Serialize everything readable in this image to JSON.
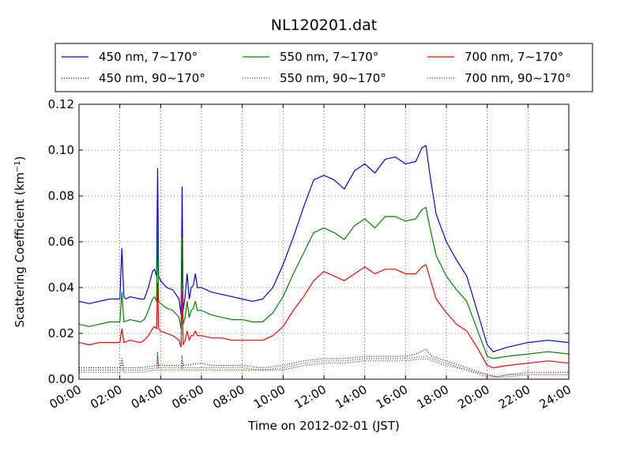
{
  "chart_data": {
    "type": "line",
    "title": "NL120201.dat",
    "xlabel": "Time on 2012-02-01 (JST)",
    "ylabel": "Scattering Coefficient (km",
    "ylabel_exp": "−1",
    "ylabel_close": ")",
    "xlim": [
      0,
      24
    ],
    "ylim": [
      0,
      0.12
    ],
    "x_ticks": [
      0,
      2,
      4,
      6,
      8,
      10,
      12,
      14,
      16,
      18,
      20,
      22,
      24
    ],
    "x_tick_labels": [
      "00:00",
      "02:00",
      "04:00",
      "06:00",
      "08:00",
      "10:00",
      "12:00",
      "14:00",
      "16:00",
      "18:00",
      "20:00",
      "22:00",
      "24:00"
    ],
    "y_ticks": [
      0,
      0.02,
      0.04,
      0.06,
      0.08,
      0.1,
      0.12
    ],
    "y_tick_labels": [
      "0.00",
      "0.02",
      "0.04",
      "0.06",
      "0.08",
      "0.10",
      "0.12"
    ],
    "grid": true,
    "legend_position": "top",
    "series": [
      {
        "name": "450 nm, 7∼170°",
        "color": "#0000ff",
        "style": "solid",
        "x": [
          0,
          0.5,
          1,
          1.5,
          2,
          2.1,
          2.2,
          2.3,
          2.5,
          3,
          3.2,
          3.4,
          3.6,
          3.7,
          3.8,
          3.85,
          3.9,
          3.95,
          4,
          4.3,
          4.6,
          4.9,
          5.0,
          5.05,
          5.1,
          5.2,
          5.3,
          5.4,
          5.5,
          5.6,
          5.7,
          5.8,
          6,
          6.5,
          7,
          7.5,
          8,
          8.5,
          9,
          9.5,
          10,
          10.5,
          11,
          11.5,
          12,
          12.5,
          13,
          13.5,
          14,
          14.5,
          15,
          15.5,
          16,
          16.5,
          16.8,
          17,
          17.2,
          17.5,
          18,
          18.5,
          19,
          19.5,
          20,
          20.3,
          21,
          22,
          23,
          24
        ],
        "y": [
          0.034,
          0.033,
          0.034,
          0.035,
          0.035,
          0.057,
          0.036,
          0.035,
          0.036,
          0.035,
          0.035,
          0.04,
          0.047,
          0.048,
          0.045,
          0.092,
          0.045,
          0.044,
          0.043,
          0.04,
          0.039,
          0.035,
          0.028,
          0.084,
          0.03,
          0.036,
          0.046,
          0.035,
          0.04,
          0.041,
          0.046,
          0.04,
          0.04,
          0.038,
          0.037,
          0.036,
          0.035,
          0.034,
          0.035,
          0.04,
          0.05,
          0.062,
          0.075,
          0.087,
          0.089,
          0.087,
          0.083,
          0.091,
          0.094,
          0.09,
          0.096,
          0.097,
          0.094,
          0.095,
          0.101,
          0.102,
          0.089,
          0.072,
          0.06,
          0.052,
          0.045,
          0.03,
          0.015,
          0.012,
          0.014,
          0.016,
          0.017,
          0.016
        ]
      },
      {
        "name": "450 nm, 90∼170°",
        "color": "#0000ff",
        "style": "dotted",
        "x": [
          0,
          1,
          2,
          2.1,
          2.2,
          3,
          3.8,
          3.85,
          3.9,
          4.5,
          5,
          5.05,
          5.1,
          6,
          6.5,
          7,
          8,
          9,
          10,
          11,
          12,
          13,
          14,
          15,
          16,
          16.5,
          17,
          17.3,
          18,
          19,
          20,
          20.5,
          21,
          22,
          23,
          24
        ],
        "y": [
          0.005,
          0.005,
          0.005,
          0.009,
          0.005,
          0.005,
          0.006,
          0.012,
          0.006,
          0.006,
          0.006,
          0.01,
          0.006,
          0.007,
          0.006,
          0.006,
          0.006,
          0.005,
          0.006,
          0.008,
          0.009,
          0.009,
          0.01,
          0.01,
          0.01,
          0.011,
          0.013,
          0.01,
          0.008,
          0.005,
          0.002,
          0.001,
          0.002,
          0.003,
          0.003,
          0.003
        ]
      },
      {
        "name": "550 nm, 7∼170°",
        "color": "#008000",
        "style": "solid",
        "x": [
          0,
          0.5,
          1,
          1.5,
          2,
          2.1,
          2.2,
          2.5,
          3,
          3.2,
          3.4,
          3.6,
          3.7,
          3.8,
          3.85,
          3.9,
          4,
          4.3,
          4.6,
          4.9,
          5.0,
          5.05,
          5.1,
          5.2,
          5.3,
          5.4,
          5.5,
          5.6,
          5.7,
          5.8,
          6,
          6.5,
          7,
          7.5,
          8,
          8.5,
          9,
          9.5,
          10,
          10.5,
          11,
          11.5,
          12,
          12.5,
          13,
          13.5,
          14,
          14.5,
          15,
          15.5,
          16,
          16.5,
          16.8,
          17,
          17.2,
          17.5,
          18,
          18.5,
          19,
          19.5,
          20,
          20.3,
          21,
          22,
          23,
          24
        ],
        "y": [
          0.024,
          0.023,
          0.024,
          0.025,
          0.025,
          0.038,
          0.025,
          0.026,
          0.025,
          0.026,
          0.03,
          0.035,
          0.036,
          0.034,
          0.066,
          0.034,
          0.033,
          0.031,
          0.03,
          0.027,
          0.022,
          0.062,
          0.024,
          0.027,
          0.034,
          0.027,
          0.03,
          0.031,
          0.034,
          0.03,
          0.03,
          0.028,
          0.027,
          0.026,
          0.026,
          0.025,
          0.025,
          0.029,
          0.036,
          0.046,
          0.055,
          0.064,
          0.066,
          0.064,
          0.061,
          0.067,
          0.07,
          0.066,
          0.071,
          0.071,
          0.069,
          0.07,
          0.074,
          0.075,
          0.066,
          0.054,
          0.045,
          0.039,
          0.034,
          0.022,
          0.01,
          0.009,
          0.01,
          0.011,
          0.012,
          0.011
        ]
      },
      {
        "name": "550 nm, 90∼170°",
        "color": "#008000",
        "style": "dotted",
        "x": [
          0,
          1,
          2,
          2.1,
          2.2,
          3,
          3.8,
          3.85,
          3.9,
          4.5,
          5,
          5.05,
          5.1,
          6,
          7,
          8,
          9,
          10,
          11,
          12,
          13,
          14,
          15,
          16,
          17,
          17.3,
          18,
          19,
          20,
          20.5,
          21,
          22,
          23,
          24
        ],
        "y": [
          0.004,
          0.004,
          0.004,
          0.007,
          0.004,
          0.004,
          0.005,
          0.01,
          0.005,
          0.005,
          0.005,
          0.008,
          0.005,
          0.005,
          0.005,
          0.005,
          0.004,
          0.005,
          0.007,
          0.008,
          0.008,
          0.009,
          0.009,
          0.009,
          0.01,
          0.009,
          0.007,
          0.004,
          0.002,
          0.001,
          0.002,
          0.002,
          0.002,
          0.002
        ]
      },
      {
        "name": "700 nm, 7∼170°",
        "color": "#ff0000",
        "style": "solid",
        "x": [
          0,
          0.5,
          1,
          1.5,
          2,
          2.1,
          2.2,
          2.5,
          3,
          3.2,
          3.4,
          3.6,
          3.7,
          3.8,
          3.85,
          3.9,
          4,
          4.3,
          4.6,
          4.9,
          5.0,
          5.05,
          5.1,
          5.2,
          5.3,
          5.4,
          5.5,
          5.6,
          5.7,
          5.8,
          6,
          6.5,
          7,
          7.5,
          8,
          8.5,
          9,
          9.5,
          10,
          10.5,
          11,
          11.5,
          12,
          12.5,
          13,
          13.5,
          14,
          14.5,
          15,
          15.5,
          16,
          16.5,
          16.8,
          17,
          17.2,
          17.5,
          18,
          18.5,
          19,
          19.5,
          20,
          20.3,
          21,
          22,
          23,
          24
        ],
        "y": [
          0.016,
          0.015,
          0.016,
          0.016,
          0.016,
          0.022,
          0.016,
          0.017,
          0.016,
          0.017,
          0.019,
          0.022,
          0.023,
          0.022,
          0.042,
          0.022,
          0.021,
          0.02,
          0.019,
          0.017,
          0.014,
          0.038,
          0.015,
          0.017,
          0.021,
          0.017,
          0.019,
          0.019,
          0.021,
          0.019,
          0.019,
          0.018,
          0.018,
          0.017,
          0.017,
          0.017,
          0.017,
          0.019,
          0.023,
          0.03,
          0.036,
          0.043,
          0.047,
          0.045,
          0.043,
          0.046,
          0.049,
          0.046,
          0.048,
          0.048,
          0.046,
          0.046,
          0.049,
          0.05,
          0.044,
          0.035,
          0.029,
          0.024,
          0.021,
          0.014,
          0.006,
          0.005,
          0.006,
          0.007,
          0.008,
          0.007
        ]
      },
      {
        "name": "700 nm, 90∼170°",
        "color": "#ff0000",
        "style": "dotted",
        "x": [
          0,
          1,
          2,
          2.1,
          2.2,
          3,
          3.8,
          3.85,
          3.9,
          4.5,
          5,
          5.05,
          5.1,
          6,
          7,
          8,
          9,
          10,
          11,
          12,
          13,
          14,
          15,
          16,
          17,
          17.3,
          18,
          19,
          20,
          20.5,
          21,
          22,
          23,
          24
        ],
        "y": [
          0.003,
          0.003,
          0.003,
          0.005,
          0.003,
          0.003,
          0.004,
          0.008,
          0.004,
          0.004,
          0.004,
          0.006,
          0.004,
          0.004,
          0.004,
          0.004,
          0.004,
          0.004,
          0.006,
          0.007,
          0.007,
          0.008,
          0.008,
          0.008,
          0.009,
          0.008,
          0.006,
          0.004,
          0.001,
          0.001,
          0.001,
          0.002,
          0.002,
          0.002
        ]
      }
    ]
  }
}
